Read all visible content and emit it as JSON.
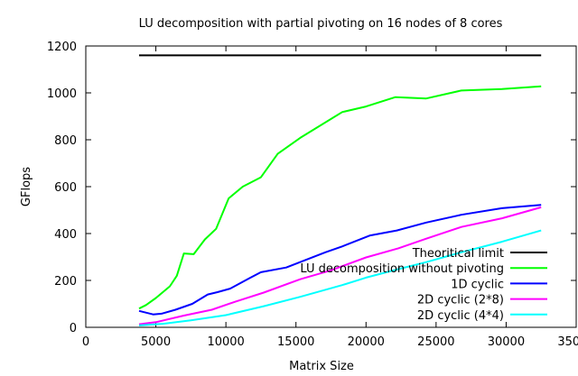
{
  "chart_data": {
    "type": "line",
    "title": "LU decomposition with partial pivoting on 16 nodes of 8 cores",
    "xlabel": "Matrix Size",
    "ylabel": "GFlops",
    "xlim": [
      0,
      35000
    ],
    "ylim": [
      0,
      1200
    ],
    "x_ticks": [
      0,
      5000,
      10000,
      15000,
      20000,
      25000,
      30000,
      35000
    ],
    "y_ticks": [
      0,
      200,
      400,
      600,
      800,
      1000,
      1200
    ],
    "grid": false,
    "legend_position": "bottom-right",
    "series": [
      {
        "name": "Theoritical limit",
        "color": "#000000",
        "points": [
          [
            3800,
            1160
          ],
          [
            32500,
            1160
          ]
        ]
      },
      {
        "name": "LU decomposition without pivoting",
        "color": "#00ff00",
        "points": [
          [
            3800,
            80
          ],
          [
            4300,
            95
          ],
          [
            5000,
            125
          ],
          [
            6000,
            175
          ],
          [
            6500,
            220
          ],
          [
            7000,
            315
          ],
          [
            7700,
            312
          ],
          [
            8500,
            375
          ],
          [
            9300,
            420
          ],
          [
            10200,
            550
          ],
          [
            11200,
            600
          ],
          [
            12500,
            640
          ],
          [
            13700,
            740
          ],
          [
            15300,
            808
          ],
          [
            18300,
            918
          ],
          [
            20000,
            942
          ],
          [
            22100,
            982
          ],
          [
            24300,
            976
          ],
          [
            26800,
            1010
          ],
          [
            29700,
            1016
          ],
          [
            32500,
            1028
          ]
        ]
      },
      {
        "name": "1D cyclic",
        "color": "#0000ff",
        "points": [
          [
            3800,
            70
          ],
          [
            4800,
            55
          ],
          [
            5400,
            58
          ],
          [
            6400,
            75
          ],
          [
            7600,
            100
          ],
          [
            8700,
            140
          ],
          [
            9400,
            150
          ],
          [
            10300,
            165
          ],
          [
            11700,
            210
          ],
          [
            12500,
            235
          ],
          [
            14300,
            255
          ],
          [
            15500,
            283
          ],
          [
            17100,
            320
          ],
          [
            18300,
            345
          ],
          [
            20300,
            392
          ],
          [
            22200,
            413
          ],
          [
            24300,
            447
          ],
          [
            26800,
            480
          ],
          [
            29700,
            508
          ],
          [
            32500,
            522
          ]
        ]
      },
      {
        "name": "2D cyclic (2*8)",
        "color": "#ff00ff",
        "points": [
          [
            3800,
            13
          ],
          [
            5000,
            22
          ],
          [
            7000,
            50
          ],
          [
            9000,
            75
          ],
          [
            10700,
            110
          ],
          [
            12700,
            148
          ],
          [
            15300,
            205
          ],
          [
            17500,
            243
          ],
          [
            20000,
            298
          ],
          [
            22300,
            337
          ],
          [
            24300,
            378
          ],
          [
            26800,
            428
          ],
          [
            29700,
            465
          ],
          [
            32500,
            512
          ]
        ]
      },
      {
        "name": "2D cyclic (4*4)",
        "color": "#00ffff",
        "points": [
          [
            3800,
            8
          ],
          [
            5500,
            15
          ],
          [
            7500,
            30
          ],
          [
            10000,
            52
          ],
          [
            12700,
            90
          ],
          [
            15300,
            130
          ],
          [
            18300,
            180
          ],
          [
            20000,
            212
          ],
          [
            22300,
            248
          ],
          [
            24300,
            278
          ],
          [
            26800,
            320
          ],
          [
            29700,
            365
          ],
          [
            32500,
            413
          ]
        ]
      }
    ]
  }
}
